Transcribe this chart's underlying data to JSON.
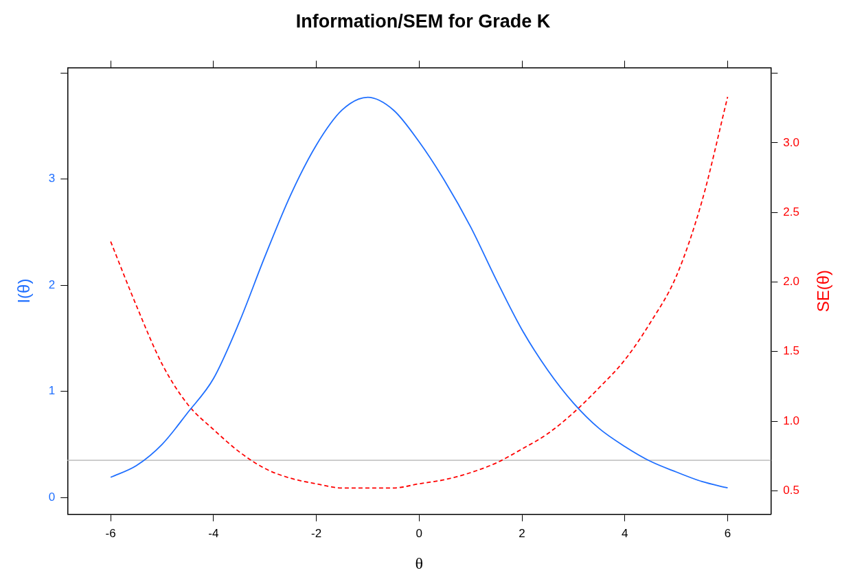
{
  "chart_data": {
    "type": "line",
    "title": "Information/SEM for Grade K",
    "xlabel": "θ",
    "ylabel": "I(θ)",
    "y2label": "SE(θ)",
    "x": [
      -6,
      -5.5,
      -5,
      -4.5,
      -4,
      -3.5,
      -3,
      -2.5,
      -2,
      -1.5,
      -1,
      -0.5,
      0,
      0.5,
      1,
      1.5,
      2,
      2.5,
      3,
      3.5,
      4,
      4.5,
      5,
      5.5,
      6
    ],
    "series": [
      {
        "color": "#1f6fff",
        "line_style": "solid",
        "values": [
          0.19,
          0.3,
          0.5,
          0.8,
          1.12,
          1.65,
          2.27,
          2.85,
          3.32,
          3.65,
          3.77,
          3.65,
          3.35,
          2.98,
          2.55,
          2.05,
          1.58,
          1.2,
          0.89,
          0.65,
          0.48,
          0.34,
          0.24,
          0.15,
          0.09
        ]
      },
      {
        "color": "#ff0000",
        "line_style": "dashed",
        "axis": "y2",
        "values": [
          2.29,
          1.83,
          1.41,
          1.12,
          0.94,
          0.78,
          0.66,
          0.59,
          0.55,
          0.52,
          0.52,
          0.52,
          0.55,
          0.58,
          0.63,
          0.7,
          0.8,
          0.91,
          1.06,
          1.24,
          1.44,
          1.71,
          2.04,
          2.58,
          3.33
        ]
      }
    ],
    "xlim": [
      -6.84,
      6.84
    ],
    "xticks": [
      -6,
      -4,
      -2,
      0,
      2,
      4,
      6
    ],
    "ylim": [
      -0.16,
      4.05
    ],
    "yticks": [
      0,
      1,
      2,
      3,
      {
        "value": 4,
        "label": null
      }
    ],
    "y2lim": [
      0.33,
      3.54
    ],
    "y2ticks": [
      {
        "value": 0.5,
        "label": "0.5"
      },
      {
        "value": 1,
        "label": "1.0"
      },
      {
        "value": 1.5,
        "label": "1.5"
      },
      {
        "value": 2,
        "label": "2.0"
      },
      {
        "value": 2.5,
        "label": "2.5"
      },
      {
        "value": 3,
        "label": "3.0"
      },
      {
        "value": 3.5,
        "label": null
      }
    ],
    "ref_lines": [
      {
        "axis": "y",
        "value": 0.35,
        "label": null,
        "color": "#bbbbbb"
      }
    ],
    "grid": false,
    "legend": false,
    "marker": "none"
  }
}
